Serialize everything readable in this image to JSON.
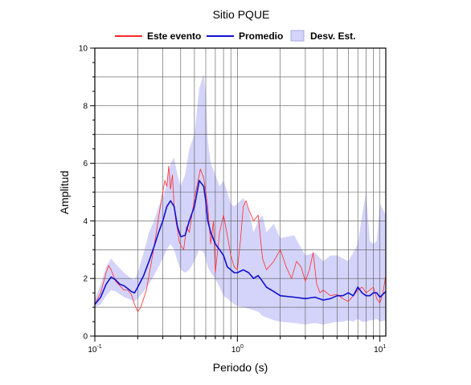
{
  "chart_data": {
    "type": "line",
    "title": "Sitio PQUE",
    "xlabel": "Periodo (s)",
    "ylabel": "Amplitud",
    "x_scale": "log",
    "xlim": [
      0.1,
      11
    ],
    "ylim": [
      0,
      10
    ],
    "grid": true,
    "legend_position": "top",
    "x_ticks": [
      {
        "value": 0.1,
        "base": "10",
        "exp": "-1"
      },
      {
        "value": 1,
        "base": "10",
        "exp": "0"
      },
      {
        "value": 10,
        "base": "10",
        "exp": "1"
      }
    ],
    "y_ticks": [
      "0",
      "2",
      "4",
      "6",
      "8",
      "10"
    ],
    "legend": [
      {
        "label": "Este evento",
        "kind": "line",
        "color": "#ff2a2a"
      },
      {
        "label": "Promedio",
        "kind": "line",
        "color": "#1010d0"
      },
      {
        "label": "Desv. Est.",
        "kind": "band",
        "color": "#d4d4fa"
      }
    ],
    "series": [
      {
        "name": "Este evento",
        "color": "#ff2a2a",
        "x": [
          0.1,
          0.11,
          0.12,
          0.125,
          0.13,
          0.14,
          0.15,
          0.16,
          0.17,
          0.18,
          0.19,
          0.2,
          0.21,
          0.22,
          0.23,
          0.25,
          0.27,
          0.29,
          0.3,
          0.31,
          0.32,
          0.33,
          0.34,
          0.35,
          0.36,
          0.37,
          0.38,
          0.39,
          0.4,
          0.42,
          0.44,
          0.46,
          0.48,
          0.5,
          0.52,
          0.55,
          0.58,
          0.6,
          0.62,
          0.65,
          0.68,
          0.7,
          0.75,
          0.8,
          0.85,
          0.9,
          0.95,
          1.0,
          1.05,
          1.1,
          1.15,
          1.2,
          1.3,
          1.4,
          1.5,
          1.6,
          1.8,
          2.0,
          2.2,
          2.4,
          2.6,
          2.8,
          3.0,
          3.2,
          3.4,
          3.6,
          3.8,
          4.0,
          4.5,
          5.0,
          5.5,
          6.0,
          6.5,
          7.0,
          7.5,
          8.0,
          8.5,
          9.0,
          9.5,
          10.0,
          10.5,
          11.0
        ],
        "y": [
          1.1,
          1.5,
          2.2,
          2.45,
          2.3,
          1.9,
          1.75,
          1.6,
          1.6,
          1.45,
          1.1,
          0.85,
          1.0,
          1.3,
          1.6,
          2.6,
          3.6,
          4.6,
          5.0,
          5.4,
          5.2,
          5.9,
          5.1,
          5.6,
          4.5,
          4.0,
          3.7,
          3.3,
          3.15,
          3.0,
          3.8,
          3.6,
          4.2,
          4.8,
          5.2,
          5.8,
          5.5,
          5.0,
          4.5,
          3.2,
          4.0,
          2.2,
          3.6,
          4.2,
          3.5,
          2.8,
          2.4,
          2.3,
          3.3,
          4.5,
          4.7,
          4.4,
          4.0,
          4.2,
          2.7,
          2.3,
          2.6,
          3.0,
          2.4,
          2.0,
          2.6,
          2.4,
          1.9,
          2.3,
          2.9,
          1.8,
          1.5,
          1.6,
          1.4,
          1.45,
          1.3,
          1.2,
          1.4,
          1.6,
          1.7,
          1.5,
          1.6,
          1.7,
          1.3,
          1.15,
          1.5,
          2.1
        ]
      },
      {
        "name": "Promedio",
        "color": "#1010d0",
        "x": [
          0.1,
          0.11,
          0.12,
          0.13,
          0.14,
          0.15,
          0.16,
          0.17,
          0.18,
          0.19,
          0.2,
          0.22,
          0.24,
          0.26,
          0.28,
          0.3,
          0.32,
          0.34,
          0.36,
          0.38,
          0.4,
          0.43,
          0.46,
          0.5,
          0.54,
          0.58,
          0.6,
          0.62,
          0.65,
          0.7,
          0.75,
          0.8,
          0.85,
          0.9,
          0.95,
          1.0,
          1.1,
          1.2,
          1.3,
          1.4,
          1.5,
          1.6,
          1.8,
          2.0,
          2.5,
          3.0,
          3.5,
          4.0,
          4.5,
          5.0,
          5.5,
          6.0,
          6.5,
          7.0,
          7.5,
          8.0,
          8.5,
          9.0,
          9.5,
          10.0,
          11.0
        ],
        "y": [
          1.1,
          1.35,
          1.8,
          2.05,
          1.95,
          1.8,
          1.75,
          1.65,
          1.55,
          1.5,
          1.7,
          2.1,
          2.6,
          3.1,
          3.6,
          4.0,
          4.5,
          4.7,
          4.5,
          3.8,
          3.45,
          3.5,
          4.0,
          4.5,
          5.4,
          5.2,
          4.7,
          4.0,
          3.6,
          3.2,
          3.0,
          2.8,
          2.4,
          2.3,
          2.2,
          2.2,
          2.3,
          2.2,
          2.0,
          2.1,
          1.9,
          1.7,
          1.55,
          1.4,
          1.35,
          1.3,
          1.35,
          1.25,
          1.3,
          1.4,
          1.4,
          1.5,
          1.4,
          1.7,
          1.5,
          1.4,
          1.4,
          1.5,
          1.5,
          1.35,
          1.55
        ]
      }
    ],
    "band": {
      "name": "Desv. Est.",
      "color": "#d4d4fa",
      "x": [
        0.1,
        0.11,
        0.12,
        0.13,
        0.14,
        0.15,
        0.16,
        0.17,
        0.18,
        0.19,
        0.2,
        0.22,
        0.24,
        0.26,
        0.28,
        0.3,
        0.32,
        0.34,
        0.36,
        0.38,
        0.4,
        0.43,
        0.46,
        0.5,
        0.54,
        0.58,
        0.6,
        0.62,
        0.65,
        0.7,
        0.75,
        0.8,
        0.85,
        0.9,
        0.95,
        1.0,
        1.1,
        1.2,
        1.3,
        1.4,
        1.5,
        1.6,
        1.8,
        2.0,
        2.5,
        3.0,
        3.5,
        4.0,
        4.5,
        5.0,
        5.5,
        6.0,
        6.5,
        7.0,
        7.5,
        8.0,
        8.5,
        9.0,
        9.5,
        10.0,
        11.0
      ],
      "upper": [
        1.3,
        1.8,
        2.4,
        2.7,
        2.5,
        2.35,
        2.2,
        2.1,
        2.0,
        1.95,
        2.2,
        2.9,
        3.6,
        4.0,
        4.5,
        4.8,
        5.3,
        6.0,
        6.2,
        5.6,
        5.2,
        5.6,
        6.5,
        7.0,
        8.6,
        9.1,
        8.4,
        6.8,
        6.0,
        5.6,
        5.2,
        5.4,
        5.0,
        4.6,
        4.5,
        4.6,
        4.8,
        4.4,
        3.6,
        4.0,
        4.2,
        3.6,
        3.9,
        3.4,
        3.5,
        2.8,
        2.9,
        2.6,
        2.8,
        2.8,
        2.7,
        2.6,
        2.9,
        3.2,
        4.2,
        5.0,
        3.3,
        3.2,
        3.3,
        4.6,
        4.2
      ],
      "lower": [
        1.0,
        1.1,
        1.4,
        1.6,
        1.55,
        1.45,
        1.35,
        1.3,
        1.25,
        1.2,
        1.3,
        1.55,
        1.8,
        2.1,
        2.4,
        2.7,
        3.0,
        3.2,
        3.0,
        2.6,
        2.3,
        2.2,
        2.3,
        2.6,
        3.0,
        2.9,
        2.7,
        2.4,
        2.2,
        2.0,
        1.7,
        1.4,
        1.3,
        1.2,
        1.1,
        1.05,
        1.0,
        0.95,
        0.9,
        0.85,
        0.7,
        0.65,
        0.55,
        0.5,
        0.45,
        0.4,
        0.45,
        0.4,
        0.45,
        0.5,
        0.5,
        0.55,
        0.5,
        0.6,
        0.5,
        0.5,
        0.55,
        0.55,
        0.6,
        0.5,
        0.55
      ]
    }
  }
}
